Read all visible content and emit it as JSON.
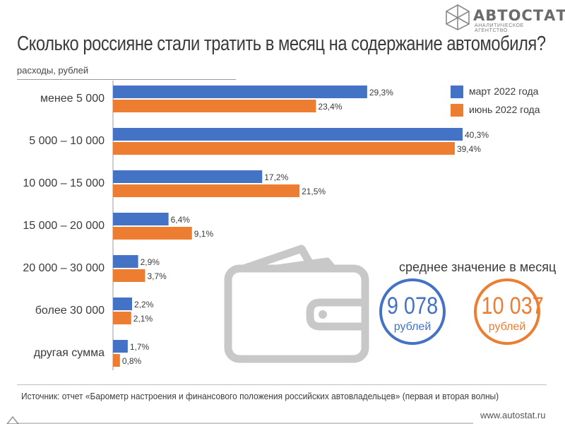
{
  "logo": {
    "name": "АВТОСТАТ",
    "subtitle": "АНАЛИТИЧЕСКОЕ АГЕНТСТВО"
  },
  "colors": {
    "march": "#4472c4",
    "june": "#ed7d31",
    "text": "#3b3b3b",
    "icon": "#c8c8c8"
  },
  "chart_data": {
    "type": "bar",
    "orientation": "horizontal",
    "title": "Сколько россияне стали тратить в месяц на содержание автомобиля?",
    "xlabel": "",
    "ylabel": "расходы, рублей",
    "categories": [
      "менее 5 000",
      "5 000 – 10 000",
      "10 000 – 15 000",
      "15 000 – 20 000",
      "20 000 – 30 000",
      "более 30 000",
      "другая сумма"
    ],
    "series": [
      {
        "name": "март 2022 года",
        "values": [
          29.3,
          40.3,
          17.2,
          6.4,
          2.9,
          2.2,
          1.7
        ],
        "labels": [
          "29,3%",
          "40,3%",
          "17,2%",
          "6,4%",
          "2,9%",
          "2,2%",
          "1,7%"
        ]
      },
      {
        "name": "июнь 2022 года",
        "values": [
          23.4,
          39.4,
          21.5,
          9.1,
          3.7,
          2.1,
          0.8
        ],
        "labels": [
          "23,4%",
          "39,4%",
          "21,5%",
          "9,1%",
          "3,7%",
          "2,1%",
          "0,8%"
        ]
      }
    ],
    "xlim": [
      0,
      40.3
    ],
    "grid": false,
    "legend_position": "top-right"
  },
  "average": {
    "title": "среднее значение в месяц",
    "march_value": "9 078",
    "june_value": "10 037",
    "unit": "рублей"
  },
  "source": "Источник: отчет «Барометр настроения и финансового положения российских автовладельцев» (первая и вторая волны)",
  "site": "www.autostat.ru"
}
